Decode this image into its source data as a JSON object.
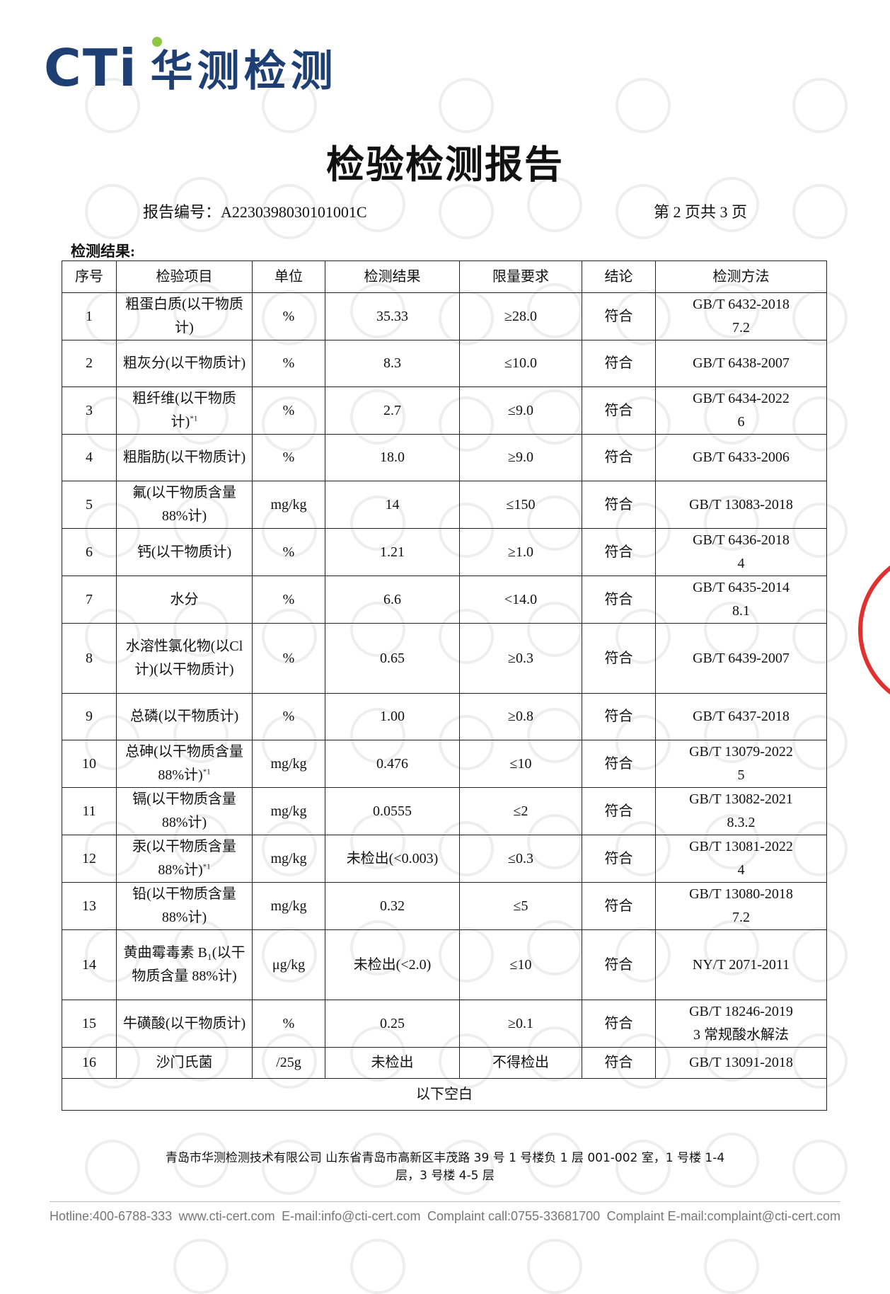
{
  "header": {
    "brand": "CTi",
    "brand_cn": "华测检测",
    "title": "检验检测报告",
    "report_no_label": "报告编号：",
    "report_no": "A2230398030101001C",
    "page": "第 2 页共 3 页",
    "section": "检测结果:"
  },
  "table": {
    "columns": [
      "序号",
      "检验项目",
      "单位",
      "检测结果",
      "限量要求",
      "结论",
      "检测方法"
    ],
    "rows": [
      {
        "no": "1",
        "item": "粗蛋白质(以干物质计)",
        "unit": "%",
        "result": "35.33",
        "limit": "≥28.0",
        "conclusion": "符合",
        "method": [
          "GB/T 6432-2018",
          "7.2"
        ]
      },
      {
        "no": "2",
        "item": "粗灰分(以干物质计)",
        "unit": "%",
        "result": "8.3",
        "limit": "≤10.0",
        "conclusion": "符合",
        "method": [
          "GB/T 6438-2007"
        ]
      },
      {
        "no": "3",
        "item": "粗纤维(以干物质计)",
        "note": "*1",
        "unit": "%",
        "result": "2.7",
        "limit": "≤9.0",
        "conclusion": "符合",
        "method": [
          "GB/T 6434-2022",
          "6"
        ]
      },
      {
        "no": "4",
        "item": "粗脂肪(以干物质计)",
        "unit": "%",
        "result": "18.0",
        "limit": "≥9.0",
        "conclusion": "符合",
        "method": [
          "GB/T 6433-2006"
        ]
      },
      {
        "no": "5",
        "item": "氟(以干物质含量88%计)",
        "unit": "mg/kg",
        "result": "14",
        "limit": "≤150",
        "conclusion": "符合",
        "method": [
          "GB/T 13083-2018"
        ]
      },
      {
        "no": "6",
        "item": "钙(以干物质计)",
        "unit": "%",
        "result": "1.21",
        "limit": "≥1.0",
        "conclusion": "符合",
        "method": [
          "GB/T 6436-2018",
          "4"
        ]
      },
      {
        "no": "7",
        "item": "水分",
        "unit": "%",
        "result": "6.6",
        "limit": "<14.0",
        "conclusion": "符合",
        "method": [
          "GB/T 6435-2014",
          "8.1"
        ]
      },
      {
        "no": "8",
        "item": "水溶性氯化物(以Cl计)(以干物质计)",
        "unit": "%",
        "result": "0.65",
        "limit": "≥0.3",
        "conclusion": "符合",
        "method": [
          "GB/T 6439-2007"
        ]
      },
      {
        "no": "9",
        "item": "总磷(以干物质计)",
        "unit": "%",
        "result": "1.00",
        "limit": "≥0.8",
        "conclusion": "符合",
        "method": [
          "GB/T 6437-2018"
        ]
      },
      {
        "no": "10",
        "item": "总砷(以干物质含量88%计)",
        "note": "*1",
        "unit": "mg/kg",
        "result": "0.476",
        "limit": "≤10",
        "conclusion": "符合",
        "method": [
          "GB/T 13079-2022",
          "5"
        ]
      },
      {
        "no": "11",
        "item": "镉(以干物质含量88%计)",
        "unit": "mg/kg",
        "result": "0.0555",
        "limit": "≤2",
        "conclusion": "符合",
        "method": [
          "GB/T 13082-2021",
          "8.3.2"
        ]
      },
      {
        "no": "12",
        "item": "汞(以干物质含量88%计)",
        "note": "*1",
        "unit": "mg/kg",
        "result": "未检出(<0.003)",
        "limit": "≤0.3",
        "conclusion": "符合",
        "method": [
          "GB/T 13081-2022",
          "4"
        ]
      },
      {
        "no": "13",
        "item": "铅(以干物质含量88%计)",
        "unit": "mg/kg",
        "result": "0.32",
        "limit": "≤5",
        "conclusion": "符合",
        "method": [
          "GB/T 13080-2018",
          "7.2"
        ]
      },
      {
        "no": "14",
        "item": "黄曲霉毒素 B₁(以干物质含量 88%计)",
        "unit": "μg/kg",
        "result": "未检出(<2.0)",
        "limit": "≤10",
        "conclusion": "符合",
        "method": [
          "NY/T 2071-2011"
        ]
      },
      {
        "no": "15",
        "item": "牛磺酸(以干物质计)",
        "unit": "%",
        "result": "0.25",
        "limit": "≥0.1",
        "conclusion": "符合",
        "method": [
          "GB/T 18246-2019",
          "3 常规酸水解法"
        ]
      },
      {
        "no": "16",
        "item": "沙门氏菌",
        "unit": "/25g",
        "result": "未检出",
        "limit": "不得检出",
        "conclusion": "符合",
        "method": [
          "GB/T 13091-2018"
        ]
      }
    ],
    "end_note": "以下空白"
  },
  "footer": {
    "address": [
      "青岛市华测检测技术有限公司  山东省青岛市高新区丰茂路 39 号 1 号楼负 1 层 001-002 室，1 号楼 1-4",
      "层，3 号楼 4-5 层"
    ],
    "contacts": [
      "Hotline:400-6788-333",
      "www.cti-cert.com",
      "E-mail:info@cti-cert.com",
      "Complaint call:0755-33681700",
      "Complaint E-mail:complaint@cti-cert.com"
    ]
  }
}
